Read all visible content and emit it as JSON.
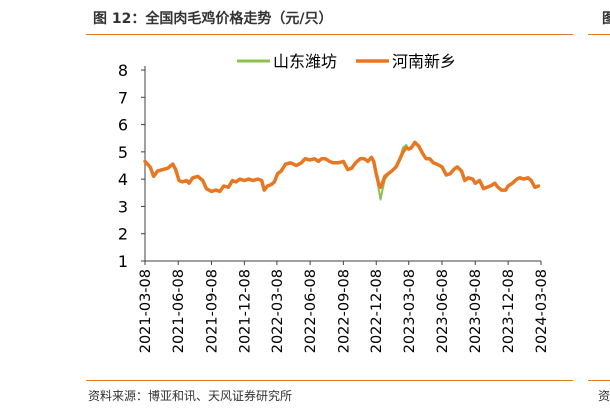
{
  "figure": {
    "title": "图 12：全国肉毛鸡价格走势（元/只）",
    "source": "资料来源：博亚和讯、天风证券研究所",
    "accent_color": "#e07b28",
    "next_title_fragment": "图",
    "next_source_fragment": "资"
  },
  "chart_data": {
    "type": "line",
    "title": "",
    "xlabel": "",
    "ylabel": "",
    "ylim": [
      1,
      8
    ],
    "yticks": [
      1,
      2,
      3,
      4,
      5,
      6,
      7,
      8
    ],
    "xlim": [
      "2021-03-08",
      "2024-03-08"
    ],
    "xticks": [
      "2021-03-08",
      "2021-06-08",
      "2021-09-08",
      "2021-12-08",
      "2022-03-08",
      "2022-06-08",
      "2022-09-08",
      "2022-12-08",
      "2023-03-08",
      "2023-06-08",
      "2023-09-08",
      "2023-12-08",
      "2024-03-08"
    ],
    "grid": false,
    "legend_position": "top",
    "series": [
      {
        "name": "山东潍坊",
        "color": "#8cc152",
        "width": 2,
        "points": [
          [
            "2021-03-08",
            4.65
          ],
          [
            "2021-03-22",
            4.45
          ],
          [
            "2021-04-01",
            4.1
          ],
          [
            "2021-04-12",
            4.3
          ],
          [
            "2021-04-26",
            4.35
          ],
          [
            "2021-05-10",
            4.4
          ],
          [
            "2021-05-24",
            4.55
          ],
          [
            "2021-06-01",
            4.35
          ],
          [
            "2021-06-10",
            3.95
          ],
          [
            "2021-06-20",
            3.9
          ],
          [
            "2021-07-01",
            3.95
          ],
          [
            "2021-07-08",
            3.85
          ],
          [
            "2021-07-18",
            4.05
          ],
          [
            "2021-08-01",
            4.1
          ],
          [
            "2021-08-15",
            3.95
          ],
          [
            "2021-08-25",
            3.65
          ],
          [
            "2021-09-08",
            3.55
          ],
          [
            "2021-09-20",
            3.6
          ],
          [
            "2021-10-01",
            3.55
          ],
          [
            "2021-10-12",
            3.75
          ],
          [
            "2021-10-25",
            3.7
          ],
          [
            "2021-11-05",
            3.95
          ],
          [
            "2021-11-15",
            3.9
          ],
          [
            "2021-11-25",
            4.0
          ],
          [
            "2021-12-08",
            3.95
          ],
          [
            "2021-12-20",
            4.0
          ],
          [
            "2022-01-01",
            3.95
          ],
          [
            "2022-01-15",
            4.0
          ],
          [
            "2022-01-25",
            3.95
          ],
          [
            "2022-02-01",
            3.6
          ],
          [
            "2022-02-10",
            3.75
          ],
          [
            "2022-02-20",
            3.8
          ],
          [
            "2022-03-01",
            3.9
          ],
          [
            "2022-03-10",
            4.2
          ],
          [
            "2022-03-20",
            4.3
          ],
          [
            "2022-04-01",
            4.55
          ],
          [
            "2022-04-15",
            4.6
          ],
          [
            "2022-05-01",
            4.5
          ],
          [
            "2022-05-15",
            4.6
          ],
          [
            "2022-05-25",
            4.75
          ],
          [
            "2022-06-08",
            4.7
          ],
          [
            "2022-06-20",
            4.75
          ],
          [
            "2022-07-01",
            4.65
          ],
          [
            "2022-07-10",
            4.75
          ],
          [
            "2022-07-20",
            4.75
          ],
          [
            "2022-08-01",
            4.65
          ],
          [
            "2022-08-10",
            4.6
          ],
          [
            "2022-08-25",
            4.6
          ],
          [
            "2022-09-08",
            4.65
          ],
          [
            "2022-09-20",
            4.35
          ],
          [
            "2022-10-01",
            4.4
          ],
          [
            "2022-10-12",
            4.6
          ],
          [
            "2022-10-25",
            4.75
          ],
          [
            "2022-11-05",
            4.75
          ],
          [
            "2022-11-15",
            4.65
          ],
          [
            "2022-11-25",
            4.8
          ],
          [
            "2022-12-01",
            4.65
          ],
          [
            "2022-12-08",
            4.2
          ],
          [
            "2022-12-15",
            3.6
          ],
          [
            "2022-12-20",
            3.25
          ],
          [
            "2022-12-25",
            3.6
          ],
          [
            "2023-01-01",
            4.0
          ],
          [
            "2023-01-10",
            4.15
          ],
          [
            "2023-01-20",
            4.3
          ],
          [
            "2023-02-01",
            4.45
          ],
          [
            "2023-02-10",
            4.7
          ],
          [
            "2023-02-20",
            5.15
          ],
          [
            "2023-03-01",
            5.25
          ],
          [
            "2023-03-08",
            5.1
          ],
          [
            "2023-03-15",
            5.2
          ],
          [
            "2023-03-25",
            5.35
          ],
          [
            "2023-04-05",
            5.2
          ],
          [
            "2023-04-15",
            4.95
          ],
          [
            "2023-04-25",
            4.75
          ],
          [
            "2023-05-05",
            4.75
          ],
          [
            "2023-05-15",
            4.6
          ],
          [
            "2023-05-25",
            4.55
          ],
          [
            "2023-06-08",
            4.45
          ],
          [
            "2023-06-20",
            4.15
          ],
          [
            "2023-07-01",
            4.2
          ],
          [
            "2023-07-10",
            4.35
          ],
          [
            "2023-07-20",
            4.45
          ],
          [
            "2023-08-01",
            4.3
          ],
          [
            "2023-08-10",
            3.95
          ],
          [
            "2023-08-20",
            4.05
          ],
          [
            "2023-09-01",
            4.0
          ],
          [
            "2023-09-08",
            3.85
          ],
          [
            "2023-09-20",
            3.95
          ],
          [
            "2023-10-01",
            3.65
          ],
          [
            "2023-10-10",
            3.7
          ],
          [
            "2023-10-20",
            3.75
          ],
          [
            "2023-11-01",
            3.85
          ],
          [
            "2023-11-10",
            3.7
          ],
          [
            "2023-11-20",
            3.6
          ],
          [
            "2023-12-01",
            3.6
          ],
          [
            "2023-12-08",
            3.75
          ],
          [
            "2023-12-20",
            3.85
          ],
          [
            "2024-01-01",
            4.0
          ],
          [
            "2024-01-10",
            4.05
          ],
          [
            "2024-01-20",
            4.0
          ],
          [
            "2024-02-01",
            4.05
          ],
          [
            "2024-02-10",
            3.95
          ],
          [
            "2024-02-20",
            3.7
          ],
          [
            "2024-03-01",
            3.75
          ]
        ]
      },
      {
        "name": "河南新乡",
        "color": "#e87722",
        "width": 3.5,
        "points": [
          [
            "2021-03-08",
            4.65
          ],
          [
            "2021-03-22",
            4.45
          ],
          [
            "2021-04-01",
            4.1
          ],
          [
            "2021-04-12",
            4.3
          ],
          [
            "2021-04-26",
            4.35
          ],
          [
            "2021-05-10",
            4.4
          ],
          [
            "2021-05-24",
            4.55
          ],
          [
            "2021-06-01",
            4.35
          ],
          [
            "2021-06-10",
            3.95
          ],
          [
            "2021-06-20",
            3.9
          ],
          [
            "2021-07-01",
            3.95
          ],
          [
            "2021-07-08",
            3.85
          ],
          [
            "2021-07-18",
            4.05
          ],
          [
            "2021-08-01",
            4.1
          ],
          [
            "2021-08-15",
            3.95
          ],
          [
            "2021-08-25",
            3.65
          ],
          [
            "2021-09-08",
            3.55
          ],
          [
            "2021-09-20",
            3.6
          ],
          [
            "2021-10-01",
            3.55
          ],
          [
            "2021-10-12",
            3.75
          ],
          [
            "2021-10-25",
            3.7
          ],
          [
            "2021-11-05",
            3.95
          ],
          [
            "2021-11-15",
            3.9
          ],
          [
            "2021-11-25",
            4.0
          ],
          [
            "2021-12-08",
            3.95
          ],
          [
            "2021-12-20",
            4.0
          ],
          [
            "2022-01-01",
            3.95
          ],
          [
            "2022-01-15",
            4.0
          ],
          [
            "2022-01-25",
            3.95
          ],
          [
            "2022-02-01",
            3.6
          ],
          [
            "2022-02-10",
            3.75
          ],
          [
            "2022-02-20",
            3.8
          ],
          [
            "2022-03-01",
            3.9
          ],
          [
            "2022-03-10",
            4.2
          ],
          [
            "2022-03-20",
            4.3
          ],
          [
            "2022-04-01",
            4.55
          ],
          [
            "2022-04-15",
            4.6
          ],
          [
            "2022-05-01",
            4.5
          ],
          [
            "2022-05-15",
            4.6
          ],
          [
            "2022-05-25",
            4.75
          ],
          [
            "2022-06-08",
            4.7
          ],
          [
            "2022-06-20",
            4.75
          ],
          [
            "2022-07-01",
            4.65
          ],
          [
            "2022-07-10",
            4.75
          ],
          [
            "2022-07-20",
            4.75
          ],
          [
            "2022-08-01",
            4.65
          ],
          [
            "2022-08-10",
            4.6
          ],
          [
            "2022-08-25",
            4.6
          ],
          [
            "2022-09-08",
            4.65
          ],
          [
            "2022-09-20",
            4.35
          ],
          [
            "2022-10-01",
            4.4
          ],
          [
            "2022-10-12",
            4.6
          ],
          [
            "2022-10-25",
            4.75
          ],
          [
            "2022-11-05",
            4.75
          ],
          [
            "2022-11-15",
            4.65
          ],
          [
            "2022-11-25",
            4.8
          ],
          [
            "2022-12-01",
            4.65
          ],
          [
            "2022-12-08",
            4.2
          ],
          [
            "2022-12-15",
            3.8
          ],
          [
            "2022-12-20",
            3.7
          ],
          [
            "2022-12-25",
            3.85
          ],
          [
            "2023-01-01",
            4.1
          ],
          [
            "2023-01-10",
            4.2
          ],
          [
            "2023-01-20",
            4.3
          ],
          [
            "2023-02-01",
            4.45
          ],
          [
            "2023-02-10",
            4.7
          ],
          [
            "2023-02-20",
            5.0
          ],
          [
            "2023-03-01",
            5.15
          ],
          [
            "2023-03-08",
            5.1
          ],
          [
            "2023-03-15",
            5.15
          ],
          [
            "2023-03-25",
            5.35
          ],
          [
            "2023-04-05",
            5.2
          ],
          [
            "2023-04-15",
            4.95
          ],
          [
            "2023-04-25",
            4.75
          ],
          [
            "2023-05-05",
            4.75
          ],
          [
            "2023-05-15",
            4.6
          ],
          [
            "2023-05-25",
            4.55
          ],
          [
            "2023-06-08",
            4.45
          ],
          [
            "2023-06-20",
            4.15
          ],
          [
            "2023-07-01",
            4.2
          ],
          [
            "2023-07-10",
            4.35
          ],
          [
            "2023-07-20",
            4.45
          ],
          [
            "2023-08-01",
            4.3
          ],
          [
            "2023-08-10",
            3.95
          ],
          [
            "2023-08-20",
            4.05
          ],
          [
            "2023-09-01",
            4.0
          ],
          [
            "2023-09-08",
            3.85
          ],
          [
            "2023-09-20",
            3.95
          ],
          [
            "2023-10-01",
            3.65
          ],
          [
            "2023-10-10",
            3.7
          ],
          [
            "2023-10-20",
            3.75
          ],
          [
            "2023-11-01",
            3.85
          ],
          [
            "2023-11-10",
            3.7
          ],
          [
            "2023-11-20",
            3.6
          ],
          [
            "2023-12-01",
            3.6
          ],
          [
            "2023-12-08",
            3.75
          ],
          [
            "2023-12-20",
            3.85
          ],
          [
            "2024-01-01",
            4.0
          ],
          [
            "2024-01-10",
            4.05
          ],
          [
            "2024-01-20",
            4.0
          ],
          [
            "2024-02-01",
            4.05
          ],
          [
            "2024-02-10",
            3.95
          ],
          [
            "2024-02-20",
            3.7
          ],
          [
            "2024-03-01",
            3.75
          ]
        ]
      }
    ]
  }
}
